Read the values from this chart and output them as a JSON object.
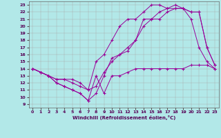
{
  "title": "",
  "xlabel": "Windchill (Refroidissement éolien,°C)",
  "bg_color": "#b2e8e8",
  "line_color": "#990099",
  "grid_color": "#aaaaaa",
  "xlim": [
    -0.5,
    23.5
  ],
  "ylim": [
    8.5,
    23.5
  ],
  "xticks": [
    0,
    1,
    2,
    3,
    4,
    5,
    6,
    7,
    8,
    9,
    10,
    11,
    12,
    13,
    14,
    15,
    16,
    17,
    18,
    19,
    20,
    21,
    22,
    23
  ],
  "yticks": [
    9,
    10,
    11,
    12,
    13,
    14,
    15,
    16,
    17,
    18,
    19,
    20,
    21,
    22,
    23
  ],
  "series": [
    {
      "x": [
        0,
        1,
        2,
        3,
        4,
        5,
        6,
        7,
        8,
        9,
        10,
        11,
        12,
        13,
        14,
        15,
        16,
        17,
        18,
        19,
        20,
        21,
        22,
        23
      ],
      "y": [
        14,
        13.5,
        13,
        12,
        11.5,
        11,
        10.5,
        9.5,
        13,
        10.5,
        13,
        13,
        13.5,
        14,
        14,
        14,
        14,
        14,
        14,
        14,
        14.5,
        14.5,
        14.5,
        14
      ]
    },
    {
      "x": [
        0,
        1,
        2,
        3,
        4,
        5,
        6,
        7,
        8,
        9,
        10,
        11,
        12,
        13,
        14,
        15,
        16,
        17,
        18,
        19,
        20,
        21,
        22,
        23
      ],
      "y": [
        14,
        13.5,
        13,
        12,
        11.5,
        11,
        10.5,
        9.5,
        10.5,
        13,
        15.5,
        16,
        16.5,
        18,
        21,
        21,
        21,
        22,
        22.5,
        22.5,
        21,
        17,
        15,
        14
      ]
    },
    {
      "x": [
        0,
        1,
        2,
        3,
        4,
        5,
        6,
        7,
        8,
        9,
        10,
        11,
        12,
        13,
        14,
        15,
        16,
        17,
        18,
        19,
        20,
        21,
        22,
        23
      ],
      "y": [
        14,
        13.5,
        13,
        12.5,
        12.5,
        12.5,
        12,
        11,
        15,
        16,
        18,
        20,
        21,
        21,
        22,
        23,
        23,
        22.5,
        22.5,
        22.5,
        22,
        22,
        17,
        14.5
      ]
    },
    {
      "x": [
        0,
        1,
        2,
        3,
        4,
        5,
        6,
        7,
        8,
        9,
        10,
        11,
        12,
        13,
        14,
        15,
        16,
        17,
        18,
        19,
        20,
        21,
        22,
        23
      ],
      "y": [
        14,
        13.5,
        13,
        12.5,
        12.5,
        12,
        11.5,
        11,
        11.5,
        13.5,
        15,
        16,
        17,
        18,
        20,
        21,
        22,
        22.5,
        23,
        22.5,
        22,
        22,
        17,
        14.5
      ]
    }
  ]
}
